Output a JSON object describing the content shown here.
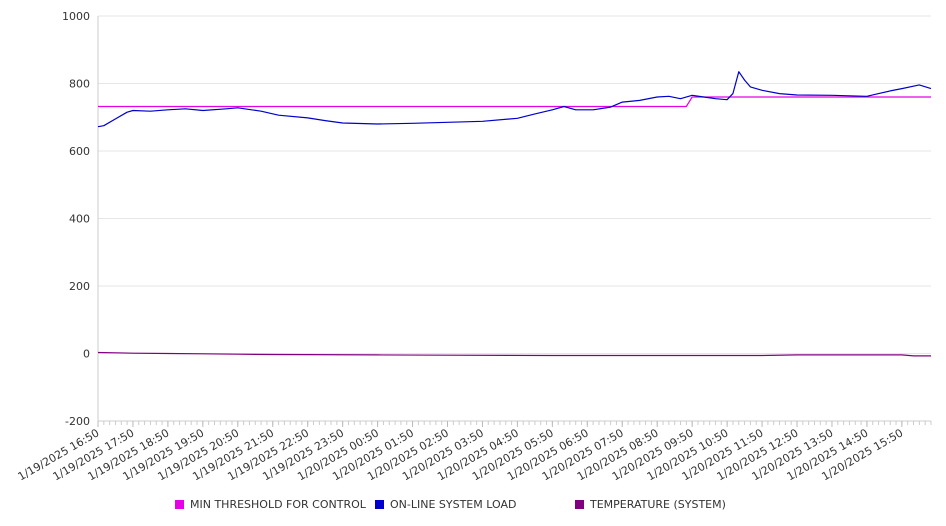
{
  "chart_data": {
    "type": "line",
    "ylim": [
      -200,
      1000
    ],
    "yticks": [
      -200,
      0,
      200,
      400,
      600,
      800,
      1000
    ],
    "grid": true,
    "legend_position": "bottom",
    "x_tick_labels": [
      "1/19/2025 16:50",
      "1/19/2025 17:50",
      "1/19/2025 18:50",
      "1/19/2025 19:50",
      "1/19/2025 20:50",
      "1/19/2025 21:50",
      "1/19/2025 22:50",
      "1/19/2025 23:50",
      "1/20/2025 00:50",
      "1/20/2025 01:50",
      "1/20/2025 02:50",
      "1/20/2025 03:50",
      "1/20/2025 04:50",
      "1/20/2025 05:50",
      "1/20/2025 06:50",
      "1/20/2025 07:50",
      "1/20/2025 08:50",
      "1/20/2025 09:50",
      "1/20/2025 10:50",
      "1/20/2025 11:50",
      "1/20/2025 12:50",
      "1/20/2025 13:50",
      "1/20/2025 14:50",
      "1/20/2025 15:50"
    ],
    "x_end": "1/20/2025 16:40",
    "series": [
      {
        "name": "MIN THRESHOLD FOR CONTROL",
        "color": "#e600e6",
        "points": [
          [
            "1/19/2025 16:50",
            732
          ],
          [
            "1/20/2025 09:40",
            732
          ],
          [
            "1/20/2025 09:50",
            760
          ],
          [
            "1/20/2025 16:40",
            760
          ]
        ]
      },
      {
        "name": "ON-LINE SYSTEM LOAD",
        "color": "#0000cc",
        "points": [
          [
            "1/19/2025 16:50",
            672
          ],
          [
            "1/19/2025 17:00",
            675
          ],
          [
            "1/19/2025 17:20",
            695
          ],
          [
            "1/19/2025 17:40",
            715
          ],
          [
            "1/19/2025 17:50",
            720
          ],
          [
            "1/19/2025 18:20",
            718
          ],
          [
            "1/19/2025 18:50",
            722
          ],
          [
            "1/19/2025 19:20",
            725
          ],
          [
            "1/19/2025 19:50",
            720
          ],
          [
            "1/19/2025 20:30",
            725
          ],
          [
            "1/19/2025 20:50",
            728
          ],
          [
            "1/19/2025 21:30",
            718
          ],
          [
            "1/19/2025 22:00",
            706
          ],
          [
            "1/19/2025 22:50",
            698
          ],
          [
            "1/19/2025 23:20",
            690
          ],
          [
            "1/19/2025 23:50",
            683
          ],
          [
            "1/20/2025 00:50",
            680
          ],
          [
            "1/20/2025 01:50",
            682
          ],
          [
            "1/20/2025 02:50",
            685
          ],
          [
            "1/20/2025 03:50",
            688
          ],
          [
            "1/20/2025 04:50",
            697
          ],
          [
            "1/20/2025 05:20",
            710
          ],
          [
            "1/20/2025 05:50",
            722
          ],
          [
            "1/20/2025 06:10",
            732
          ],
          [
            "1/20/2025 06:30",
            722
          ],
          [
            "1/20/2025 07:00",
            722
          ],
          [
            "1/20/2025 07:30",
            730
          ],
          [
            "1/20/2025 07:50",
            745
          ],
          [
            "1/20/2025 08:20",
            750
          ],
          [
            "1/20/2025 08:50",
            760
          ],
          [
            "1/20/2025 09:10",
            762
          ],
          [
            "1/20/2025 09:30",
            755
          ],
          [
            "1/20/2025 09:50",
            765
          ],
          [
            "1/20/2025 10:10",
            760
          ],
          [
            "1/20/2025 10:30",
            755
          ],
          [
            "1/20/2025 10:50",
            752
          ],
          [
            "1/20/2025 11:00",
            770
          ],
          [
            "1/20/2025 11:10",
            835
          ],
          [
            "1/20/2025 11:20",
            810
          ],
          [
            "1/20/2025 11:30",
            790
          ],
          [
            "1/20/2025 11:50",
            780
          ],
          [
            "1/20/2025 12:20",
            770
          ],
          [
            "1/20/2025 12:50",
            766
          ],
          [
            "1/20/2025 13:50",
            765
          ],
          [
            "1/20/2025 14:50",
            762
          ],
          [
            "1/20/2025 15:10",
            770
          ],
          [
            "1/20/2025 15:30",
            778
          ],
          [
            "1/20/2025 15:50",
            785
          ],
          [
            "1/20/2025 16:20",
            796
          ],
          [
            "1/20/2025 16:40",
            785
          ]
        ]
      },
      {
        "name": "TEMPERATURE (SYSTEM)",
        "color": "#800080",
        "points": [
          [
            "1/19/2025 16:50",
            3
          ],
          [
            "1/19/2025 17:20",
            2
          ],
          [
            "1/19/2025 17:50",
            1
          ],
          [
            "1/19/2025 18:50",
            0
          ],
          [
            "1/19/2025 19:50",
            -1
          ],
          [
            "1/19/2025 20:50",
            -2
          ],
          [
            "1/19/2025 21:50",
            -3
          ],
          [
            "1/20/2025 00:50",
            -4
          ],
          [
            "1/20/2025 02:50",
            -5
          ],
          [
            "1/20/2025 05:50",
            -6
          ],
          [
            "1/20/2025 08:50",
            -6
          ],
          [
            "1/20/2025 11:50",
            -6
          ],
          [
            "1/20/2025 12:50",
            -4
          ],
          [
            "1/20/2025 15:50",
            -4
          ],
          [
            "1/20/2025 16:10",
            -7
          ],
          [
            "1/20/2025 16:40",
            -7
          ]
        ]
      }
    ]
  }
}
